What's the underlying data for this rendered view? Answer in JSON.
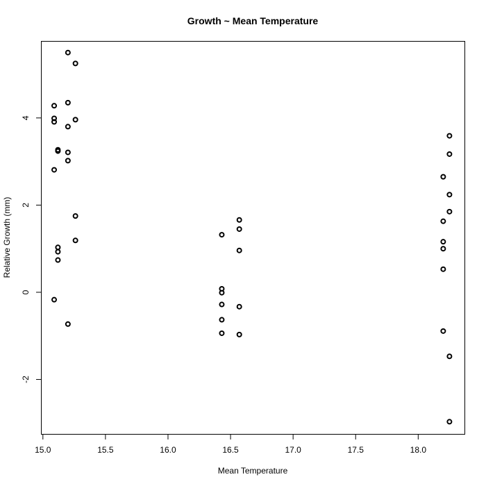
{
  "chart_data": {
    "type": "scatter",
    "title": "Growth ~ Mean Temperature",
    "xlabel": "Mean Temperature",
    "ylabel": "Relative Growth (mm)",
    "xlim": [
      14.99,
      18.37
    ],
    "ylim": [
      -3.25,
      5.75
    ],
    "xticks": [
      15.0,
      15.5,
      16.0,
      16.5,
      17.0,
      17.5,
      18.0
    ],
    "xtick_labels": [
      "15.0",
      "15.5",
      "16.0",
      "16.5",
      "17.0",
      "17.5",
      "18.0"
    ],
    "yticks": [
      -2,
      0,
      2,
      4
    ],
    "ytick_labels": [
      "-2",
      "0",
      "2",
      "4"
    ],
    "grid": false,
    "points": [
      {
        "x": 15.09,
        "y": 4.28
      },
      {
        "x": 15.09,
        "y": 3.99
      },
      {
        "x": 15.09,
        "y": 3.91
      },
      {
        "x": 15.09,
        "y": 2.81
      },
      {
        "x": 15.09,
        "y": -0.17
      },
      {
        "x": 15.12,
        "y": 3.27
      },
      {
        "x": 15.12,
        "y": 3.24
      },
      {
        "x": 15.12,
        "y": 1.03
      },
      {
        "x": 15.12,
        "y": 0.93
      },
      {
        "x": 15.12,
        "y": 0.74
      },
      {
        "x": 15.2,
        "y": 5.5
      },
      {
        "x": 15.2,
        "y": 4.35
      },
      {
        "x": 15.2,
        "y": 3.8
      },
      {
        "x": 15.2,
        "y": 3.21
      },
      {
        "x": 15.2,
        "y": 3.02
      },
      {
        "x": 15.2,
        "y": -0.73
      },
      {
        "x": 15.26,
        "y": 5.25
      },
      {
        "x": 15.26,
        "y": 3.96
      },
      {
        "x": 15.26,
        "y": 1.75
      },
      {
        "x": 15.26,
        "y": 1.19
      },
      {
        "x": 16.43,
        "y": 1.32
      },
      {
        "x": 16.43,
        "y": 0.08
      },
      {
        "x": 16.43,
        "y": -0.01
      },
      {
        "x": 16.43,
        "y": -0.28
      },
      {
        "x": 16.43,
        "y": -0.63
      },
      {
        "x": 16.43,
        "y": -0.94
      },
      {
        "x": 16.57,
        "y": 1.66
      },
      {
        "x": 16.57,
        "y": 1.45
      },
      {
        "x": 16.57,
        "y": 0.96
      },
      {
        "x": 16.57,
        "y": -0.33
      },
      {
        "x": 16.57,
        "y": -0.97
      },
      {
        "x": 18.2,
        "y": 2.65
      },
      {
        "x": 18.2,
        "y": 1.63
      },
      {
        "x": 18.2,
        "y": 1.16
      },
      {
        "x": 18.2,
        "y": 1.0
      },
      {
        "x": 18.2,
        "y": 0.53
      },
      {
        "x": 18.2,
        "y": -0.89
      },
      {
        "x": 18.25,
        "y": 3.59
      },
      {
        "x": 18.25,
        "y": 3.17
      },
      {
        "x": 18.25,
        "y": 2.24
      },
      {
        "x": 18.25,
        "y": 1.85
      },
      {
        "x": 18.25,
        "y": -1.47
      },
      {
        "x": 18.25,
        "y": -2.97
      }
    ]
  }
}
